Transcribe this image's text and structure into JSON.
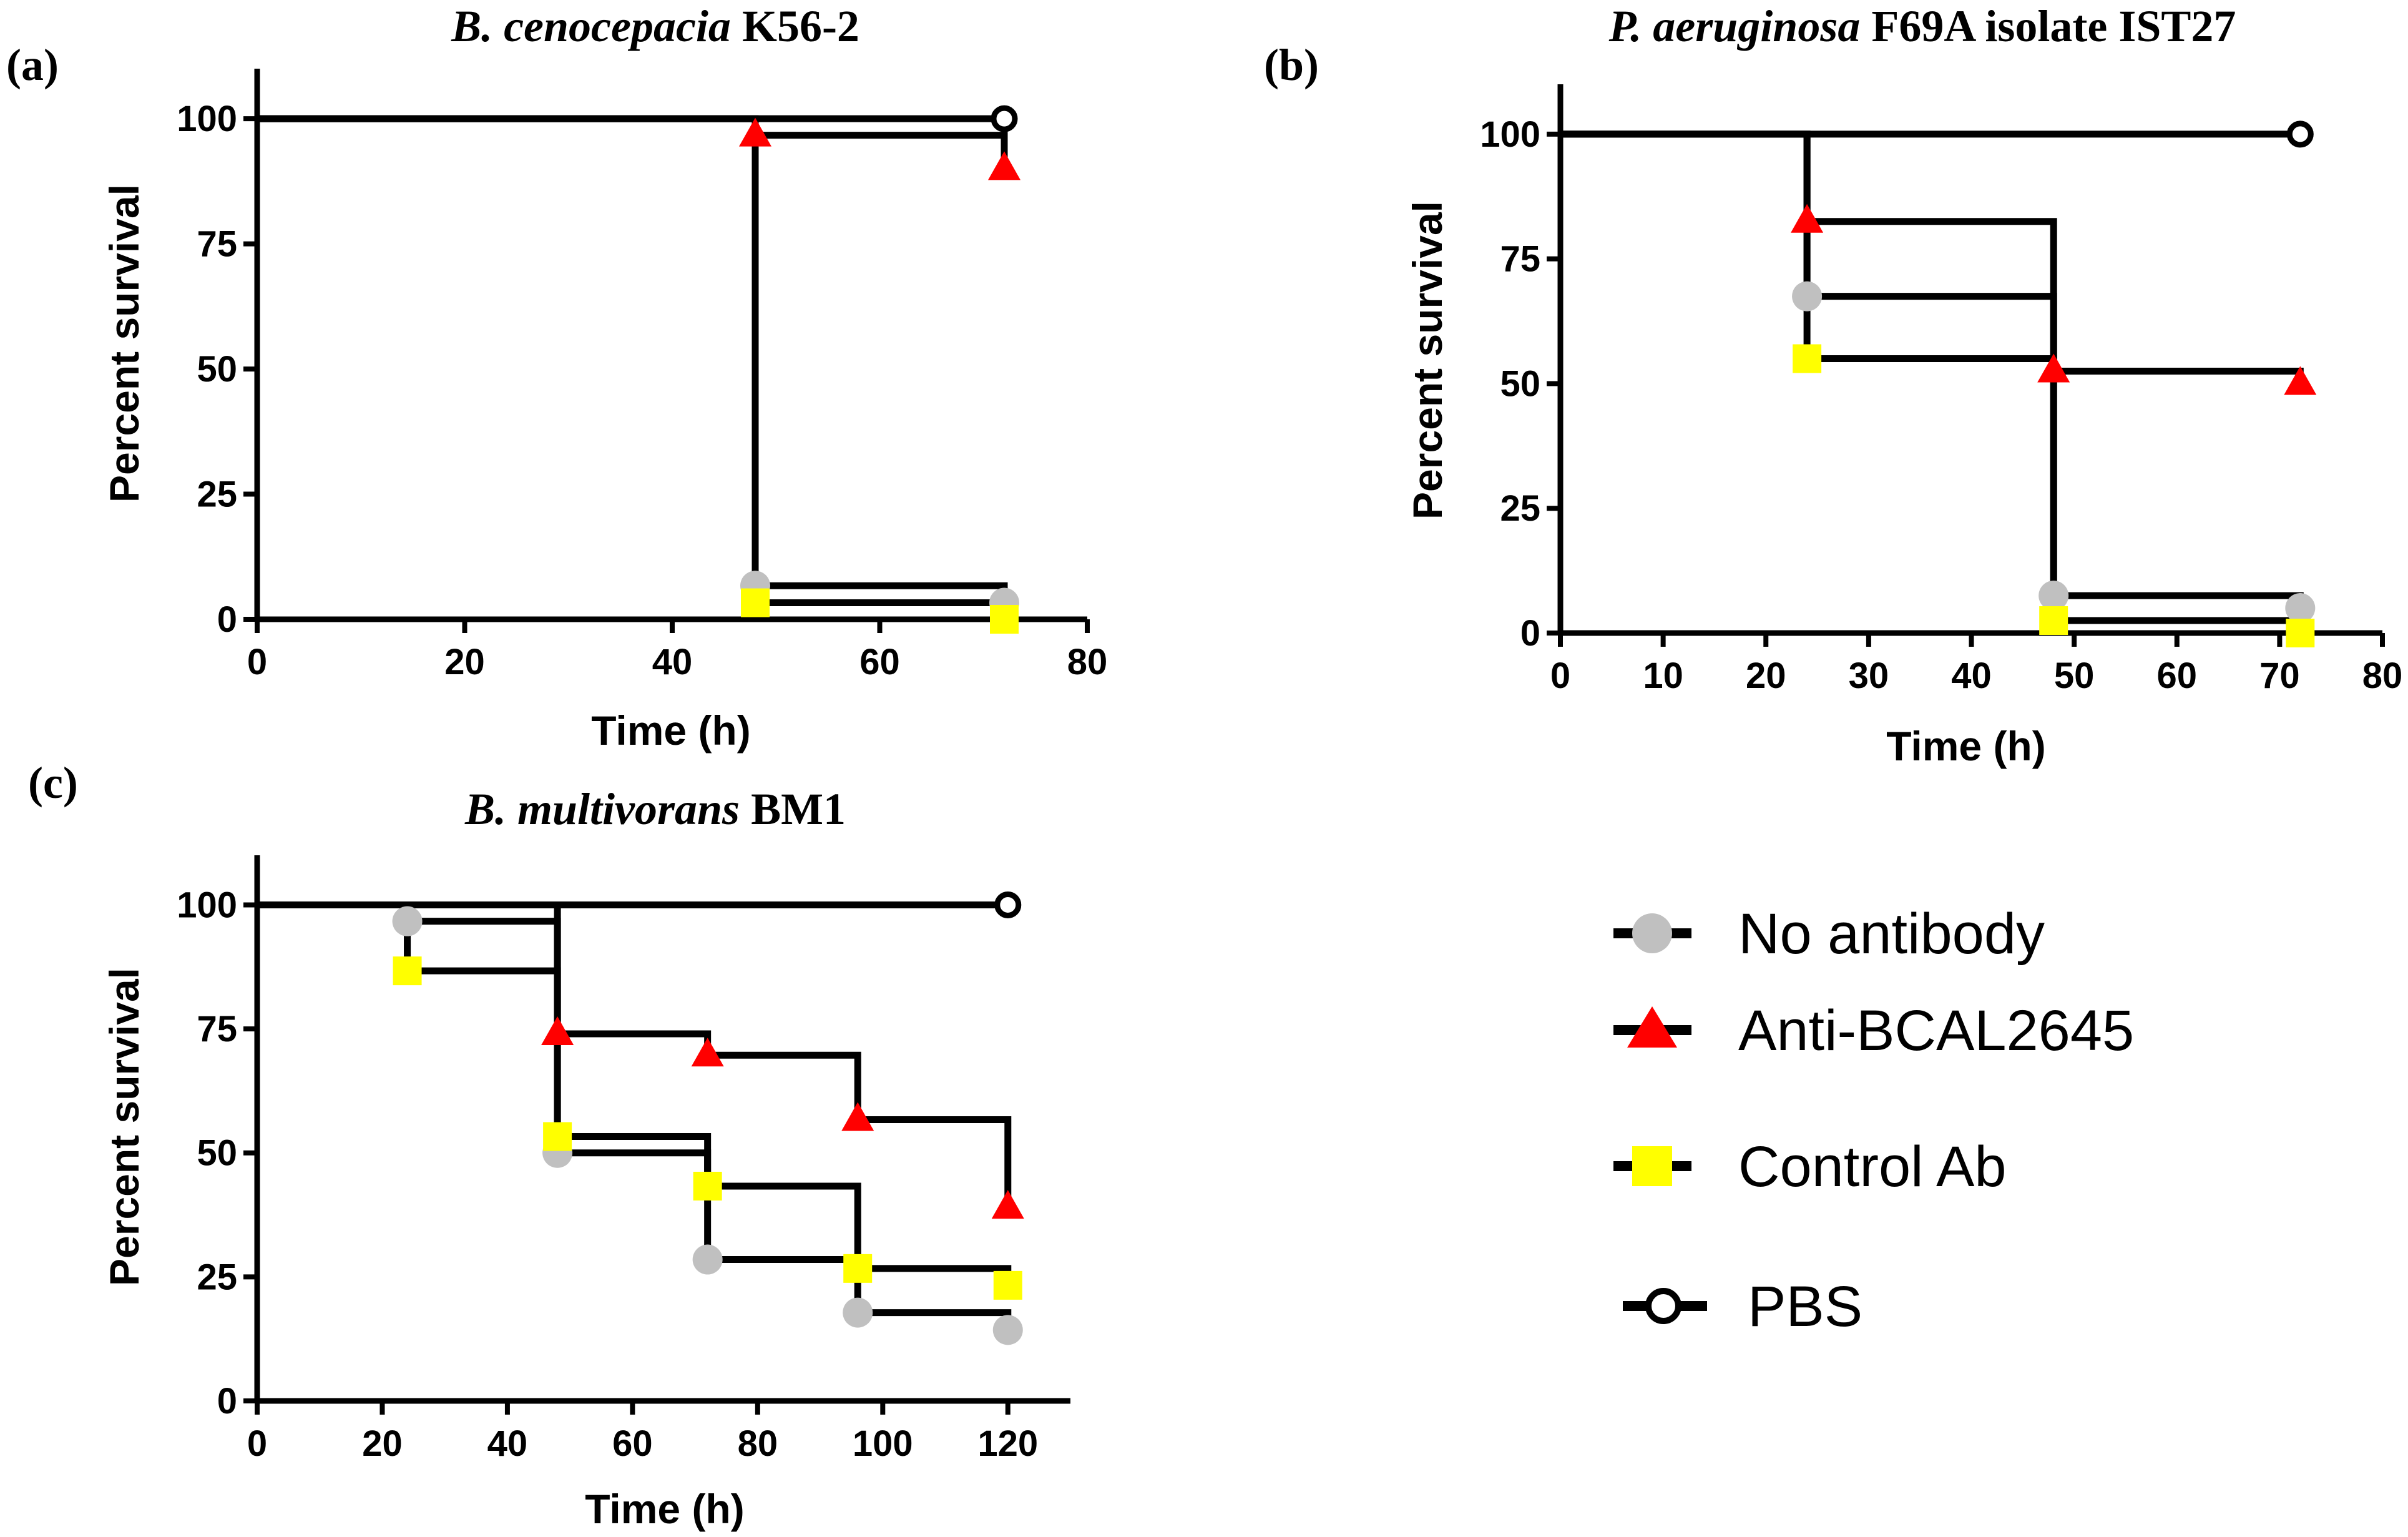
{
  "colors": {
    "no_antibody": "#c0c0c0",
    "anti_bcal": "#ff0000",
    "control_ab": "#ffff00",
    "pbs": "#000000",
    "line": "#000000"
  },
  "legend": {
    "entries": [
      {
        "key": "no_antibody",
        "label": "No antibody",
        "marker": "circle"
      },
      {
        "key": "anti_bcal",
        "label": "Anti-BCAL2645",
        "marker": "triangle"
      },
      {
        "key": "control_ab",
        "label": "Control Ab",
        "marker": "square"
      },
      {
        "key": "pbs",
        "label": "PBS",
        "marker": "open-circle"
      }
    ]
  },
  "chart_data": [
    {
      "id": "a",
      "type": "line",
      "panel_letter": "(a)",
      "title_italic": "B. cenocepacia",
      "title_rest": " K56-2",
      "xlabel": "Time (h)",
      "ylabel": "Percent survival",
      "xlim": [
        0,
        80
      ],
      "ylim": [
        0,
        110
      ],
      "xticks": [
        0,
        20,
        40,
        60,
        80
      ],
      "yticks": [
        0,
        25,
        50,
        75,
        100
      ],
      "series": [
        {
          "name": "PBS",
          "key": "pbs",
          "x": [
            0,
            72
          ],
          "y": [
            100,
            100
          ],
          "marker_points": [
            [
              72,
              100
            ]
          ]
        },
        {
          "name": "Anti-BCAL2645",
          "key": "anti_bcal",
          "x": [
            0,
            48,
            48,
            72,
            72
          ],
          "y": [
            100,
            100,
            96.7,
            96.7,
            90
          ],
          "marker_points": [
            [
              48,
              96.7
            ],
            [
              72,
              90
            ]
          ]
        },
        {
          "name": "No antibody",
          "key": "no_antibody",
          "x": [
            0,
            48,
            48,
            72,
            72
          ],
          "y": [
            100,
            100,
            6.7,
            6.7,
            3.3
          ],
          "marker_points": [
            [
              48,
              6.7
            ],
            [
              72,
              3.3
            ]
          ]
        },
        {
          "name": "Control Ab",
          "key": "control_ab",
          "x": [
            0,
            48,
            48,
            72,
            72
          ],
          "y": [
            100,
            100,
            3.3,
            3.3,
            0
          ],
          "marker_points": [
            [
              48,
              3.3
            ],
            [
              72,
              0
            ]
          ]
        }
      ]
    },
    {
      "id": "b",
      "type": "line",
      "panel_letter": "(b)",
      "title_italic": "P. aeruginosa",
      "title_rest": " F69A isolate IST27",
      "xlabel": "Time (h)",
      "ylabel": "Percent survival",
      "xlim": [
        0,
        80
      ],
      "ylim": [
        0,
        110
      ],
      "xticks": [
        0,
        10,
        20,
        30,
        40,
        50,
        60,
        70,
        80
      ],
      "yticks": [
        0,
        25,
        50,
        75,
        100
      ],
      "series": [
        {
          "name": "PBS",
          "key": "pbs",
          "x": [
            0,
            72
          ],
          "y": [
            100,
            100
          ],
          "marker_points": [
            [
              72,
              100
            ]
          ]
        },
        {
          "name": "Anti-BCAL2645",
          "key": "anti_bcal",
          "x": [
            0,
            24,
            24,
            48,
            48,
            72,
            72
          ],
          "y": [
            100,
            100,
            82.5,
            82.5,
            52.5,
            52.5,
            50
          ],
          "marker_points": [
            [
              24,
              82.5
            ],
            [
              48,
              52.5
            ],
            [
              72,
              50
            ]
          ]
        },
        {
          "name": "No antibody",
          "key": "no_antibody",
          "x": [
            0,
            24,
            24,
            48,
            48,
            72,
            72
          ],
          "y": [
            100,
            100,
            67.5,
            67.5,
            7.5,
            7.5,
            5
          ],
          "marker_points": [
            [
              24,
              67.5
            ],
            [
              48,
              7.5
            ],
            [
              72,
              5
            ]
          ]
        },
        {
          "name": "Control Ab",
          "key": "control_ab",
          "x": [
            0,
            24,
            24,
            48,
            48,
            72,
            72
          ],
          "y": [
            100,
            100,
            55,
            55,
            2.5,
            2.5,
            0
          ],
          "marker_points": [
            [
              24,
              55
            ],
            [
              48,
              2.5
            ],
            [
              72,
              0
            ]
          ]
        }
      ]
    },
    {
      "id": "c",
      "type": "line",
      "panel_letter": "(c)",
      "title_italic": "B. multivorans",
      "title_rest": " BM1",
      "xlabel": "Time (h)",
      "ylabel": "Percent survival",
      "xlim": [
        0,
        130
      ],
      "ylim": [
        0,
        110
      ],
      "xticks": [
        0,
        20,
        40,
        60,
        80,
        100,
        120
      ],
      "yticks": [
        0,
        25,
        50,
        75,
        100
      ],
      "series": [
        {
          "name": "PBS",
          "key": "pbs",
          "x": [
            0,
            120
          ],
          "y": [
            100,
            100
          ],
          "marker_points": [
            [
              120,
              100
            ]
          ]
        },
        {
          "name": "Anti-BCAL2645",
          "key": "anti_bcal",
          "x": [
            0,
            48,
            48,
            72,
            72,
            96,
            96,
            120,
            120
          ],
          "y": [
            100,
            100,
            74,
            74,
            69.7,
            69.7,
            56.7,
            56.7,
            39
          ],
          "marker_points": [
            [
              48,
              74
            ],
            [
              72,
              69.7
            ],
            [
              96,
              56.7
            ],
            [
              120,
              39
            ]
          ]
        },
        {
          "name": "No antibody",
          "key": "no_antibody",
          "x": [
            0,
            24,
            24,
            48,
            48,
            72,
            72,
            96,
            96,
            120,
            120
          ],
          "y": [
            100,
            100,
            96.7,
            96.7,
            50,
            50,
            28.5,
            28.5,
            17.8,
            17.8,
            14.3
          ],
          "marker_points": [
            [
              24,
              96.7
            ],
            [
              48,
              50
            ],
            [
              72,
              28.5
            ],
            [
              96,
              17.8
            ],
            [
              120,
              14.3
            ]
          ]
        },
        {
          "name": "Control Ab",
          "key": "control_ab",
          "x": [
            0,
            24,
            24,
            48,
            48,
            72,
            72,
            96,
            96,
            120,
            120
          ],
          "y": [
            100,
            100,
            86.7,
            86.7,
            53.3,
            53.3,
            43.3,
            43.3,
            26.7,
            26.7,
            23.3
          ],
          "marker_points": [
            [
              24,
              86.7
            ],
            [
              48,
              53.3
            ],
            [
              72,
              43.3
            ],
            [
              96,
              26.7
            ],
            [
              120,
              23.3
            ]
          ]
        }
      ]
    }
  ]
}
